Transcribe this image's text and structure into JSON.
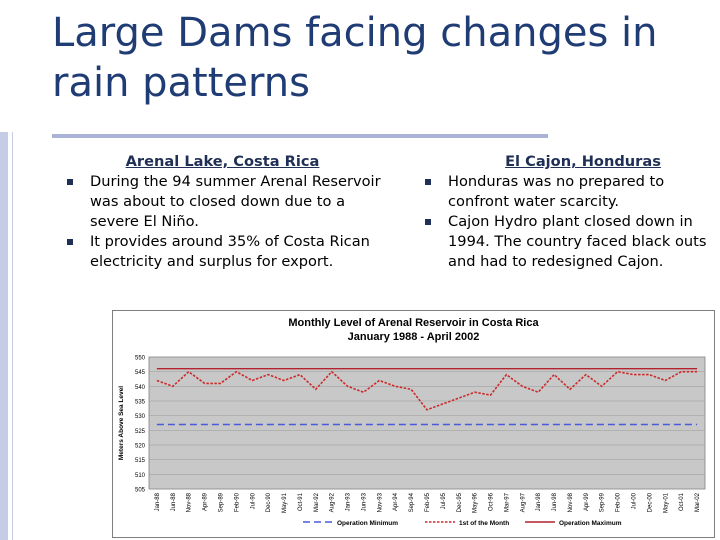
{
  "slide": {
    "title": "Large Dams facing changes in rain patterns"
  },
  "left_column": {
    "heading": "Arenal Lake, Costa Rica",
    "bullets": [
      "During the 94 summer Arenal Reservoir was about to closed down due to a severe El Niño.",
      "It  provides around 35% of Costa Rican electricity and surplus for export."
    ]
  },
  "right_column": {
    "heading": "El Cajon, Honduras",
    "bullets": [
      "Honduras was no prepared to confront water scarcity.",
      "Cajon Hydro plant closed down in 1994. The country faced black outs and had to redesigned Cajon."
    ]
  },
  "colors": {
    "title": "#1f3c74",
    "bullet": "#1f2f55",
    "operation_minimum": "#4a5bd6",
    "first_of_month": "#cc2a2a",
    "operation_maximum": "#b2232f",
    "plot_background": "#c8c8c8"
  },
  "chart_data": {
    "type": "line",
    "title": "Monthly Level of Arenal Reservoir in Costa Rica",
    "subtitle": "January 1988 - April 2002",
    "ylabel": "Meters Above Sea Level",
    "xlabel": "",
    "ylim": [
      505,
      550
    ],
    "yticks": [
      505,
      510,
      515,
      520,
      525,
      530,
      535,
      540,
      545,
      550
    ],
    "grid": true,
    "legend_position": "bottom",
    "xticks": [
      "Jan-88",
      "Jun-88",
      "Nov-88",
      "Apr-89",
      "Sep-89",
      "Feb-90",
      "Jul-90",
      "Dec-90",
      "May-91",
      "Oct-91",
      "Mar-92",
      "Aug-92",
      "Jan-93",
      "Jun-93",
      "Nov-93",
      "Apr-94",
      "Sep-94",
      "Feb-95",
      "Jul-95",
      "Dec-95",
      "May-96",
      "Oct-96",
      "Mar-97",
      "Aug-97",
      "Jan-98",
      "Jun-98",
      "Nov-98",
      "Apr-99",
      "Sep-99",
      "Feb-00",
      "Jul-00",
      "Dec-00",
      "May-01",
      "Oct-01",
      "Mar-02"
    ],
    "series": [
      {
        "name": "Operation Minimum",
        "style": "dashed",
        "values": [
          527,
          527,
          527,
          527,
          527,
          527,
          527,
          527,
          527,
          527,
          527,
          527,
          527,
          527,
          527,
          527,
          527,
          527,
          527,
          527,
          527,
          527,
          527,
          527,
          527,
          527,
          527,
          527,
          527,
          527,
          527,
          527,
          527,
          527,
          527
        ]
      },
      {
        "name": "1st of the Month",
        "style": "dotted",
        "values": [
          542,
          540,
          545,
          541,
          541,
          545,
          542,
          544,
          542,
          544,
          539,
          545,
          540,
          538,
          542,
          540,
          539,
          532,
          534,
          536,
          538,
          537,
          544,
          540,
          538,
          544,
          539,
          544,
          540,
          545,
          544,
          544,
          542,
          545,
          545
        ]
      },
      {
        "name": "Operation Maximum",
        "style": "solid",
        "values": [
          546,
          546,
          546,
          546,
          546,
          546,
          546,
          546,
          546,
          546,
          546,
          546,
          546,
          546,
          546,
          546,
          546,
          546,
          546,
          546,
          546,
          546,
          546,
          546,
          546,
          546,
          546,
          546,
          546,
          546,
          546,
          546,
          546,
          546,
          546
        ]
      }
    ]
  }
}
